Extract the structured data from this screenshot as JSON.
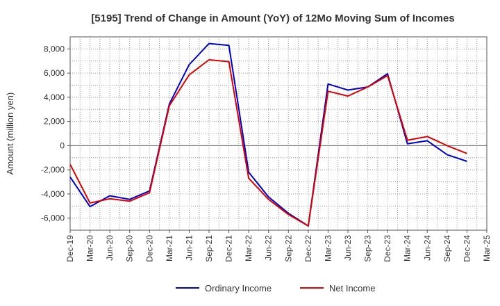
{
  "chart_data": {
    "type": "line",
    "title": "[5195]  Trend of Change in Amount (YoY) of 12Mo Moving Sum of Incomes",
    "xlabel": "",
    "ylabel": "Amount (million yen)",
    "ylim": [
      -7000,
      9000
    ],
    "yticks": [
      -6000,
      -4000,
      -2000,
      0,
      2000,
      4000,
      6000,
      8000
    ],
    "ytick_labels": [
      "-6,000",
      "-4,000",
      "-2,000",
      "0",
      "2,000",
      "4,000",
      "6,000",
      "8,000"
    ],
    "categories": [
      "Dec-19",
      "Mar-20",
      "Jun-20",
      "Sep-20",
      "Dec-20",
      "Mar-21",
      "Jun-21",
      "Sep-21",
      "Dec-21",
      "Mar-22",
      "Jun-22",
      "Sep-22",
      "Dec-22",
      "Mar-23",
      "Jun-23",
      "Sep-23",
      "Dec-23",
      "Mar-24",
      "Jun-24",
      "Sep-24",
      "Dec-24",
      "Mar-25"
    ],
    "grid": true,
    "legend_position": "bottom",
    "series": [
      {
        "name": "Ordinary Income",
        "color": "#0000cc",
        "values": [
          -2600,
          -5050,
          -4150,
          -4450,
          -3750,
          3450,
          6700,
          8450,
          8300,
          -2200,
          -4250,
          -5600,
          -6650,
          5100,
          4600,
          4850,
          5950,
          150,
          400,
          -750,
          -1300,
          null
        ]
      },
      {
        "name": "Net Income",
        "color": "#dd0000",
        "values": [
          -1550,
          -4750,
          -4400,
          -4600,
          -3900,
          3300,
          5850,
          7100,
          6950,
          -2700,
          -4450,
          -5700,
          -6650,
          4500,
          4100,
          4850,
          5800,
          450,
          750,
          0,
          -650,
          null
        ]
      }
    ]
  }
}
